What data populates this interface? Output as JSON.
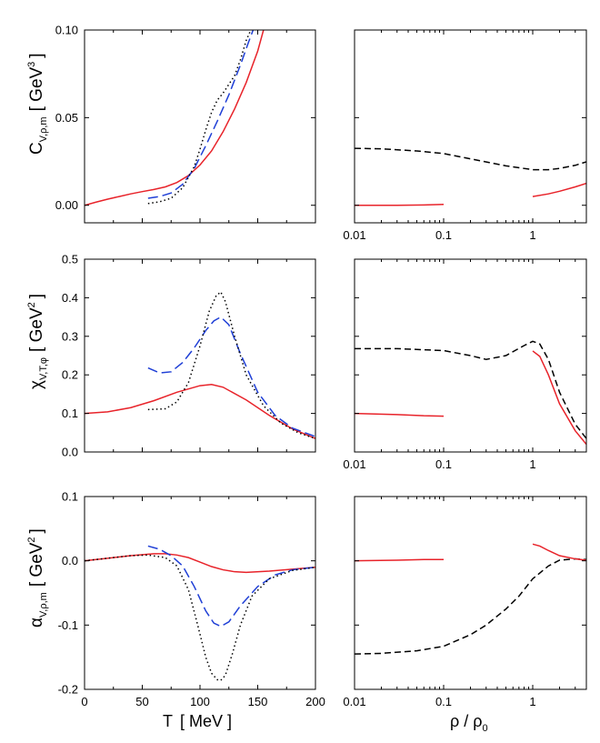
{
  "colors": {
    "red": "#e8232a",
    "blue": "#1f3fd6",
    "black": "#000000"
  },
  "axes_labels": {
    "T_axis": {
      "main": "T",
      "unit": "[ MeV ]"
    },
    "rho_axis": {
      "main": "ρ / ρ",
      "sub": "0"
    },
    "c_label": {
      "main": "C",
      "sub": "V,ρ,m",
      "unit": "[ GeV",
      "sup": "3",
      "close": "]"
    },
    "chi_label": {
      "main": "χ",
      "sub": "V,T,φ",
      "unit": "[ GeV",
      "sup": "2",
      "close": "]"
    },
    "alpha_label": {
      "main": "α",
      "sub": "V,ρ,m",
      "unit": "[ GeV",
      "sup": "2",
      "close": "]"
    }
  },
  "chart_data": [
    {
      "id": "c_vs_T",
      "type": "line",
      "xscale": "linear",
      "xlim": [
        0,
        200
      ],
      "ylim": [
        -0.01,
        0.1
      ],
      "xticks": [
        0,
        50,
        100,
        150,
        200
      ],
      "yticks": [
        0.0,
        0.05,
        0.1
      ],
      "ytick_labels": [
        "0.00",
        "0.05",
        "0.10"
      ],
      "ylabel": "C_{V,ρ,m} [ GeV^3 ]",
      "series": [
        {
          "name": "red-solid",
          "color": "#e8232a",
          "dash": "solid",
          "x": [
            0,
            10,
            20,
            30,
            40,
            50,
            60,
            70,
            80,
            90,
            100,
            110,
            120,
            130,
            140,
            150,
            155
          ],
          "y": [
            0.0,
            0.0018,
            0.0035,
            0.005,
            0.0065,
            0.0078,
            0.009,
            0.0105,
            0.013,
            0.017,
            0.023,
            0.031,
            0.042,
            0.055,
            0.07,
            0.088,
            0.1
          ]
        },
        {
          "name": "blue-dashed",
          "color": "#1f3fd6",
          "dash": "long",
          "x": [
            55,
            65,
            75,
            85,
            95,
            105,
            115,
            125,
            135,
            142,
            146
          ],
          "y": [
            0.004,
            0.005,
            0.007,
            0.012,
            0.021,
            0.034,
            0.048,
            0.063,
            0.08,
            0.093,
            0.1
          ]
        },
        {
          "name": "black-dotted",
          "color": "#000000",
          "dash": "dot",
          "x": [
            55,
            65,
            75,
            85,
            95,
            100,
            105,
            110,
            115,
            120,
            125,
            130,
            135,
            140,
            144
          ],
          "y": [
            0.001,
            0.002,
            0.004,
            0.01,
            0.022,
            0.032,
            0.043,
            0.053,
            0.06,
            0.064,
            0.069,
            0.074,
            0.083,
            0.094,
            0.1
          ]
        }
      ]
    },
    {
      "id": "c_vs_rho",
      "type": "line",
      "xscale": "log",
      "xlim": [
        0.01,
        4
      ],
      "ylim": [
        -0.01,
        0.1
      ],
      "xticks": [
        0.01,
        0.1,
        1
      ],
      "xtick_labels": [
        "0.01",
        "0.1",
        "1"
      ],
      "yticks": [
        0.0,
        0.05,
        0.1
      ],
      "series": [
        {
          "name": "black-dashed",
          "color": "#000000",
          "dash": "medium",
          "x": [
            0.01,
            0.02,
            0.05,
            0.1,
            0.2,
            0.5,
            1.0,
            1.5,
            2.0,
            3.0,
            4.0
          ],
          "y": [
            0.0325,
            0.0322,
            0.031,
            0.0295,
            0.0265,
            0.0225,
            0.0203,
            0.0203,
            0.021,
            0.0228,
            0.0248
          ]
        },
        {
          "name": "red-low",
          "color": "#e8232a",
          "dash": "solid",
          "x": [
            0.01,
            0.03,
            0.06,
            0.1
          ],
          "y": [
            0.0,
            0.0,
            0.0002,
            0.0005
          ]
        },
        {
          "name": "red-high",
          "color": "#e8232a",
          "dash": "solid",
          "x": [
            1.0,
            1.5,
            2.0,
            3.0,
            4.0
          ],
          "y": [
            0.005,
            0.0065,
            0.008,
            0.0105,
            0.0125
          ]
        }
      ]
    },
    {
      "id": "chi_vs_T",
      "type": "line",
      "xscale": "linear",
      "xlim": [
        0,
        200
      ],
      "ylim": [
        0,
        0.5
      ],
      "xticks": [
        0,
        50,
        100,
        150,
        200
      ],
      "yticks": [
        0.0,
        0.1,
        0.2,
        0.3,
        0.4,
        0.5
      ],
      "ytick_labels": [
        "0.0",
        "0.1",
        "0.2",
        "0.3",
        "0.4",
        "0.5"
      ],
      "ylabel": "χ_{V,T,φ} [ GeV^2 ]",
      "series": [
        {
          "name": "red-solid",
          "color": "#e8232a",
          "dash": "solid",
          "x": [
            0,
            20,
            40,
            60,
            80,
            100,
            110,
            120,
            140,
            160,
            180,
            200
          ],
          "y": [
            0.1,
            0.104,
            0.115,
            0.133,
            0.155,
            0.172,
            0.175,
            0.168,
            0.135,
            0.095,
            0.06,
            0.035
          ]
        },
        {
          "name": "blue-dashed",
          "color": "#1f3fd6",
          "dash": "long",
          "x": [
            55,
            65,
            75,
            85,
            95,
            105,
            112,
            118,
            125,
            135,
            150,
            165,
            180,
            200
          ],
          "y": [
            0.218,
            0.205,
            0.208,
            0.232,
            0.27,
            0.315,
            0.34,
            0.35,
            0.33,
            0.255,
            0.155,
            0.095,
            0.062,
            0.04
          ]
        },
        {
          "name": "black-dotted",
          "color": "#000000",
          "dash": "dot",
          "x": [
            55,
            70,
            80,
            90,
            100,
            108,
            114,
            118,
            122,
            130,
            140,
            155,
            170,
            185,
            200
          ],
          "y": [
            0.11,
            0.112,
            0.13,
            0.18,
            0.275,
            0.365,
            0.405,
            0.415,
            0.39,
            0.3,
            0.2,
            0.12,
            0.075,
            0.05,
            0.035
          ]
        }
      ]
    },
    {
      "id": "chi_vs_rho",
      "type": "line",
      "xscale": "log",
      "xlim": [
        0.01,
        4
      ],
      "ylim": [
        0,
        0.5
      ],
      "xticks": [
        0.01,
        0.1,
        1
      ],
      "xtick_labels": [
        "0.01",
        "0.1",
        "1"
      ],
      "yticks": [
        0.0,
        0.1,
        0.2,
        0.3,
        0.4,
        0.5
      ],
      "series": [
        {
          "name": "black-dashed",
          "color": "#000000",
          "dash": "medium",
          "x": [
            0.01,
            0.03,
            0.1,
            0.2,
            0.3,
            0.5,
            0.8,
            1.0,
            1.2,
            1.5,
            2.0,
            3.0,
            4.0
          ],
          "y": [
            0.268,
            0.268,
            0.263,
            0.25,
            0.24,
            0.25,
            0.276,
            0.287,
            0.28,
            0.24,
            0.155,
            0.072,
            0.035
          ]
        },
        {
          "name": "red-low",
          "color": "#e8232a",
          "dash": "solid",
          "x": [
            0.01,
            0.03,
            0.06,
            0.1
          ],
          "y": [
            0.1,
            0.097,
            0.094,
            0.093
          ]
        },
        {
          "name": "red-high",
          "color": "#e8232a",
          "dash": "solid",
          "x": [
            1.0,
            1.2,
            1.5,
            2.0,
            3.0,
            4.0
          ],
          "y": [
            0.262,
            0.248,
            0.2,
            0.125,
            0.055,
            0.02
          ]
        }
      ]
    },
    {
      "id": "alpha_vs_T",
      "type": "line",
      "xscale": "linear",
      "xlim": [
        0,
        200
      ],
      "ylim": [
        -0.2,
        0.1
      ],
      "xticks": [
        0,
        50,
        100,
        150,
        200
      ],
      "xtick_labels": [
        "0",
        "50",
        "100",
        "150",
        "200"
      ],
      "yticks": [
        -0.2,
        -0.1,
        0.0,
        0.1
      ],
      "ytick_labels": [
        "-0.2",
        "-0.1",
        "0.0",
        "0.1"
      ],
      "xlabel": "T [ MeV ]",
      "ylabel": "α_{V,ρ,m} [ GeV^2 ]",
      "series": [
        {
          "name": "red-solid",
          "color": "#e8232a",
          "dash": "solid",
          "x": [
            0,
            20,
            40,
            60,
            70,
            80,
            90,
            100,
            110,
            120,
            130,
            140,
            160,
            180,
            200
          ],
          "y": [
            0.0,
            0.004,
            0.008,
            0.011,
            0.011,
            0.009,
            0.005,
            -0.002,
            -0.009,
            -0.014,
            -0.017,
            -0.018,
            -0.016,
            -0.013,
            -0.01
          ]
        },
        {
          "name": "blue-dashed",
          "color": "#1f3fd6",
          "dash": "long",
          "x": [
            55,
            65,
            75,
            85,
            95,
            105,
            112,
            118,
            125,
            135,
            150,
            165,
            180,
            200
          ],
          "y": [
            0.023,
            0.018,
            0.008,
            -0.008,
            -0.04,
            -0.078,
            -0.097,
            -0.102,
            -0.095,
            -0.07,
            -0.04,
            -0.022,
            -0.014,
            -0.01
          ]
        },
        {
          "name": "black-dotted",
          "color": "#000000",
          "dash": "dot",
          "x": [
            0,
            40,
            55,
            70,
            80,
            90,
            98,
            105,
            110,
            115,
            118,
            122,
            128,
            135,
            145,
            160,
            180,
            200
          ],
          "y": [
            0.0,
            0.008,
            0.009,
            0.005,
            -0.008,
            -0.045,
            -0.1,
            -0.15,
            -0.175,
            -0.185,
            -0.186,
            -0.178,
            -0.145,
            -0.1,
            -0.055,
            -0.028,
            -0.015,
            -0.01
          ]
        }
      ]
    },
    {
      "id": "alpha_vs_rho",
      "type": "line",
      "xscale": "log",
      "xlim": [
        0.01,
        4
      ],
      "ylim": [
        -0.2,
        0.1
      ],
      "xticks": [
        0.01,
        0.1,
        1
      ],
      "xtick_labels": [
        "0.01",
        "0.1",
        "1"
      ],
      "yticks": [
        -0.2,
        -0.1,
        0.0,
        0.1
      ],
      "xlabel": "ρ / ρ0",
      "series": [
        {
          "name": "black-dashed",
          "color": "#000000",
          "dash": "medium",
          "x": [
            0.01,
            0.02,
            0.05,
            0.1,
            0.2,
            0.3,
            0.5,
            0.7,
            1.0,
            1.5,
            2.0,
            3.0,
            4.0
          ],
          "y": [
            -0.145,
            -0.144,
            -0.14,
            -0.133,
            -0.115,
            -0.1,
            -0.075,
            -0.055,
            -0.028,
            -0.008,
            0.001,
            0.003,
            0.002
          ]
        },
        {
          "name": "red-low",
          "color": "#e8232a",
          "dash": "solid",
          "x": [
            0.01,
            0.03,
            0.06,
            0.1
          ],
          "y": [
            0.0,
            0.001,
            0.002,
            0.002
          ]
        },
        {
          "name": "red-high",
          "color": "#e8232a",
          "dash": "solid",
          "x": [
            1.0,
            1.2,
            1.5,
            2.0,
            3.0,
            4.0
          ],
          "y": [
            0.026,
            0.023,
            0.016,
            0.008,
            0.003,
            0.001
          ]
        }
      ]
    }
  ]
}
